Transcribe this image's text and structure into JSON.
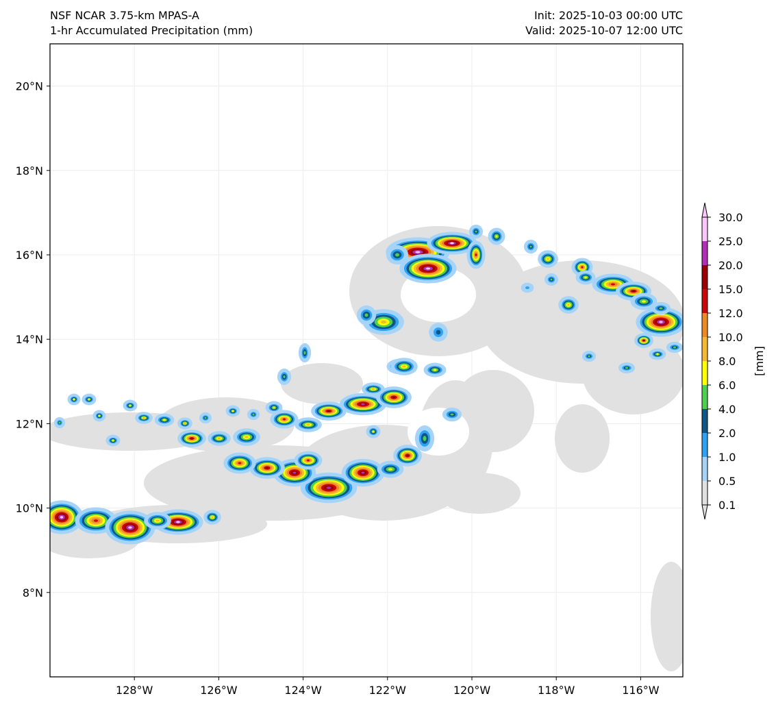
{
  "header": {
    "model": "NSF NCAR 3.75-km MPAS-A",
    "field": "1-hr Accumulated Precipitation (mm)",
    "init": "Init: 2025-10-03 00:00 UTC",
    "valid": "Valid: 2025-10-07 12:00 UTC"
  },
  "map": {
    "lon_ticks": [
      "128°W",
      "126°W",
      "124°W",
      "122°W",
      "120°W",
      "118°W",
      "116°W"
    ],
    "lat_ticks": [
      "20°N",
      "18°N",
      "16°N",
      "14°N",
      "12°N",
      "10°N",
      "8°N"
    ],
    "extent": {
      "lon": [
        -130,
        -115
      ],
      "lat": [
        6,
        21
      ]
    }
  },
  "colorbar": {
    "label": "[mm]",
    "levels": [
      "0.1",
      "0.5",
      "1.0",
      "2.0",
      "4.0",
      "6.0",
      "8.0",
      "10.0",
      "12.0",
      "15.0",
      "20.0",
      "25.0",
      "30.0"
    ],
    "colors": [
      "#e1e1e1",
      "#a6d4f8",
      "#2fa2f3",
      "#0d5686",
      "#4ecf52",
      "#ffff00",
      "#f6b733",
      "#ed8a24",
      "#cc0707",
      "#9a0000",
      "#b230b8",
      "#fbc6fb"
    ]
  }
}
